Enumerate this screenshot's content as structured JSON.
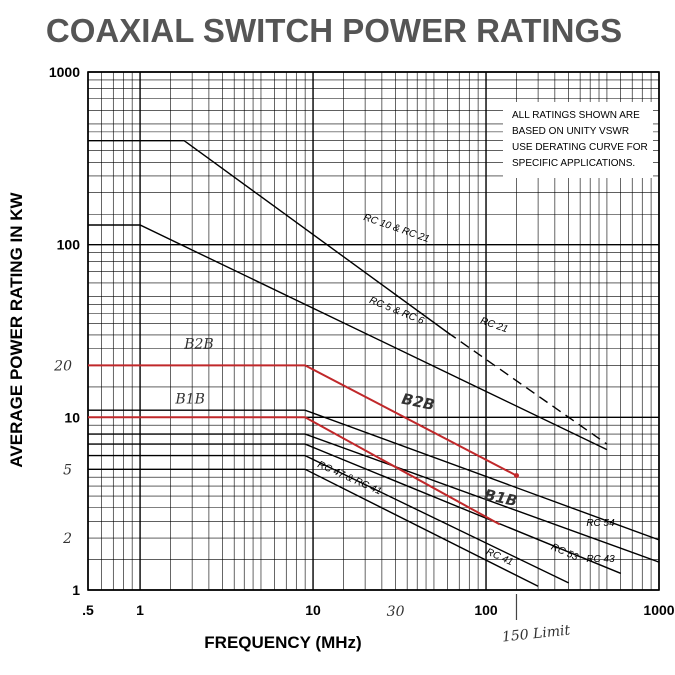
{
  "chart_data": {
    "type": "line",
    "title": "COAXIAL SWITCH POWER RATINGS",
    "xlabel": "FREQUENCY (MHz)",
    "ylabel": "AVERAGE POWER RATING IN KW",
    "x_scale": "log",
    "y_scale": "log",
    "xlim": [
      0.5,
      1000
    ],
    "ylim": [
      1,
      1000
    ],
    "x_ticks": [
      {
        "value": 0.5,
        "label": ".5"
      },
      {
        "value": 1,
        "label": "1"
      },
      {
        "value": 10,
        "label": "10"
      },
      {
        "value": 100,
        "label": "100"
      },
      {
        "value": 1000,
        "label": "1000"
      }
    ],
    "y_ticks": [
      {
        "value": 1,
        "label": "1"
      },
      {
        "value": 10,
        "label": "10"
      },
      {
        "value": 100,
        "label": "100"
      },
      {
        "value": 1000,
        "label": "1000"
      }
    ],
    "grid": true,
    "note": [
      "ALL RATINGS SHOWN ARE",
      "BASED ON UNITY VSWR",
      "USE DERATING CURVE FOR",
      "SPECIFIC APPLICATIONS."
    ],
    "series": [
      {
        "name": "RC 10 & RC 21",
        "x": [
          0.5,
          1.8,
          60
        ],
        "y": [
          400,
          400,
          31
        ],
        "color": "#000000"
      },
      {
        "name": "RC 21",
        "x": [
          60,
          500
        ],
        "y": [
          31,
          7
        ],
        "color": "#000000",
        "dashed": true
      },
      {
        "name": "RC 5 & RC 6",
        "x": [
          0.5,
          1.0,
          500
        ],
        "y": [
          130,
          130,
          6.5
        ],
        "color": "#000000"
      },
      {
        "name": "RC 54",
        "x": [
          0.5,
          9,
          1000
        ],
        "y": [
          11,
          11,
          1.95
        ],
        "color": "#000000"
      },
      {
        "name": "RC 43",
        "x": [
          0.5,
          9,
          1000
        ],
        "y": [
          8,
          8,
          1.45
        ],
        "color": "#000000"
      },
      {
        "name": "RC 53",
        "x": [
          0.5,
          9,
          600
        ],
        "y": [
          7,
          7,
          1.25
        ],
        "color": "#000000"
      },
      {
        "name": "RC 41",
        "x": [
          0.5,
          9,
          300
        ],
        "y": [
          6,
          6,
          1.1
        ],
        "color": "#000000"
      },
      {
        "name": "RC 47 & RC 41",
        "x": [
          0.5,
          9,
          200
        ],
        "y": [
          5,
          5,
          1.05
        ],
        "color": "#000000"
      },
      {
        "name": "B2B",
        "x": [
          0.5,
          9,
          150
        ],
        "y": [
          20,
          20,
          4.6
        ],
        "color": "#c0282a"
      },
      {
        "name": "B1B",
        "x": [
          0.5,
          9,
          120
        ],
        "y": [
          10,
          10,
          2.4
        ],
        "color": "#c0282a"
      }
    ],
    "annotations": [
      {
        "text": "20",
        "y": 20
      },
      {
        "text": "5",
        "y": 5
      },
      {
        "text": "2",
        "y": 2
      },
      {
        "text": "30",
        "x": 30
      },
      {
        "text": "150 Limit",
        "x": 150
      }
    ]
  },
  "colors": {
    "red_line": "#c0282a",
    "grid": "#000000",
    "title": "#555555"
  }
}
